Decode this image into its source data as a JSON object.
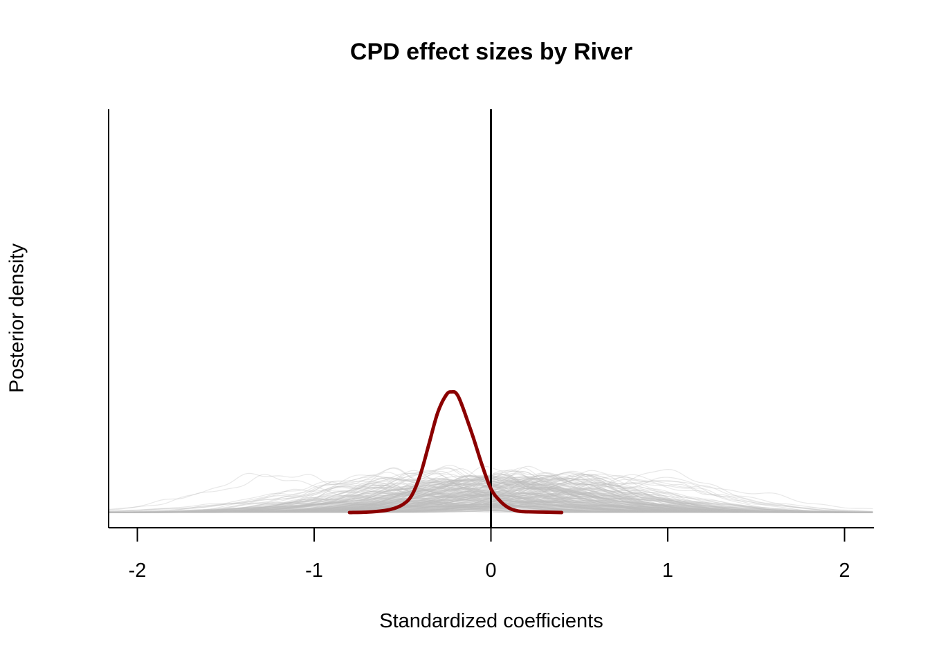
{
  "chart_data": {
    "type": "line",
    "title": "CPD effect sizes by River",
    "xlabel": "Standardized coefficients",
    "ylabel": "Posterior density",
    "xlim": [
      -2.16,
      2.16
    ],
    "ylim": [
      0,
      3.4
    ],
    "x_ticks": [
      "-2",
      "-1",
      "0",
      "1",
      "2"
    ],
    "x_tick_values": [
      -2,
      -1,
      0,
      1,
      2
    ],
    "y_ticks_shown": false,
    "grid": false,
    "reference_line_x": 0,
    "highlight_color": "#8B0000",
    "background_curve_color": "#BEBEBE",
    "highlight_series": {
      "x": [
        -0.8,
        -0.7,
        -0.6,
        -0.55,
        -0.5,
        -0.45,
        -0.4,
        -0.35,
        -0.3,
        -0.25,
        -0.22,
        -0.2,
        -0.18,
        -0.15,
        -0.1,
        -0.05,
        0.0,
        0.05,
        0.1,
        0.15,
        0.2,
        0.3,
        0.4
      ],
      "y": [
        0.0,
        0.01,
        0.05,
        0.1,
        0.2,
        0.42,
        0.95,
        1.75,
        2.55,
        3.0,
        3.06,
        3.04,
        2.9,
        2.55,
        1.9,
        1.2,
        0.6,
        0.3,
        0.12,
        0.04,
        0.02,
        0.01,
        0.0
      ]
    },
    "background_series": {
      "count": 200,
      "x_range": [
        -2.16,
        2.16
      ],
      "peak_range": [
        0.15,
        2.0
      ]
    }
  }
}
